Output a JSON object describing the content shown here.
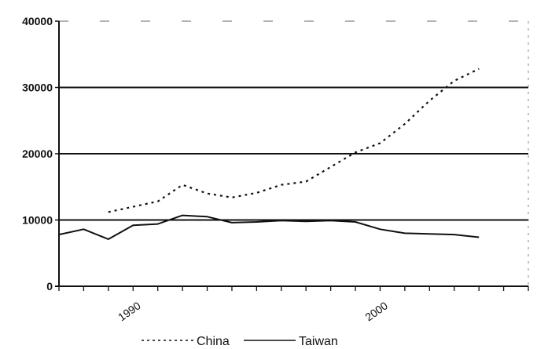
{
  "chart_data": {
    "type": "line",
    "title": "",
    "xlabel": "",
    "ylabel": "",
    "xlim": [
      1987,
      2006
    ],
    "ylim": [
      0,
      40000
    ],
    "yticks": [
      0,
      10000,
      20000,
      30000,
      40000
    ],
    "ytick_labels": [
      "0",
      "10000",
      "20000",
      "30000",
      "40000"
    ],
    "xticks": [
      1990,
      2000
    ],
    "xtick_labels": [
      "1990",
      "2000"
    ],
    "grid": "horizontal",
    "legend": "bottom",
    "series": [
      {
        "name": "China",
        "style": "dashed",
        "color": "#111111",
        "x": [
          1989,
          1990,
          1991,
          1992,
          1993,
          1994,
          1995,
          1996,
          1997,
          1998,
          1999,
          2000,
          2001,
          2002,
          2003,
          2004
        ],
        "y": [
          11200,
          12000,
          12800,
          15300,
          14000,
          13400,
          14100,
          15300,
          15800,
          18000,
          20200,
          21600,
          24500,
          28000,
          31000,
          32800
        ]
      },
      {
        "name": "Taiwan",
        "style": "solid",
        "color": "#111111",
        "x": [
          1987,
          1988,
          1989,
          1990,
          1991,
          1992,
          1993,
          1994,
          1995,
          1996,
          1997,
          1998,
          1999,
          2000,
          2001,
          2002,
          2003,
          2004
        ],
        "y": [
          7800,
          8600,
          7100,
          9200,
          9400,
          10700,
          10500,
          9600,
          9700,
          9900,
          9800,
          9900,
          9700,
          8600,
          8000,
          7900,
          7800,
          7400
        ]
      }
    ]
  }
}
